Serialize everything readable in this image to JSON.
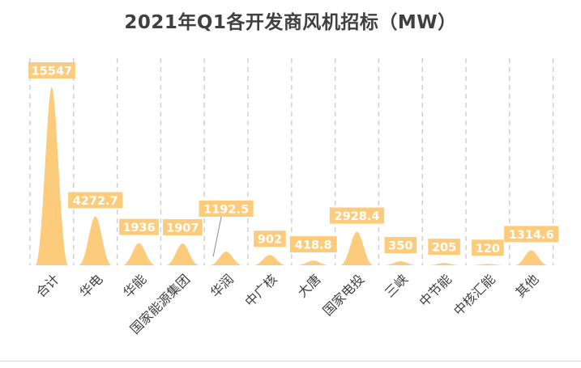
{
  "colors": {
    "fill": "#FCCC7C",
    "label_bg": "#FCCC7C",
    "label_text": "#ffffff",
    "title": "#404040",
    "tick_text": "#404040",
    "grid": "#d0d0d0",
    "leader": "#8c8c8c"
  },
  "chart_data": {
    "type": "area",
    "title": "2021年Q1各开发商风机招标（MW）",
    "xlabel": "",
    "ylabel": "",
    "categories": [
      "合计",
      "华电",
      "华能",
      "国家能源集团",
      "华润",
      "中广核",
      "大唐",
      "国家电投",
      "三峡",
      "中节能",
      "中核汇能",
      "其他"
    ],
    "series": [
      {
        "name": "风机招标（MW）",
        "values": [
          15547,
          4272.7,
          1936,
          1907,
          1192.5,
          902,
          418.8,
          2928.4,
          350,
          205,
          120,
          1314.6
        ],
        "labels": [
          "15547",
          "4272.7",
          "1936",
          "1907",
          "1192.5",
          "902",
          "418.8",
          "2928.4",
          "350",
          "205",
          "120",
          "1314.6"
        ]
      }
    ],
    "ylim": [
      0,
      15547
    ],
    "grid": "vertical dashed separators",
    "legend": "none"
  }
}
